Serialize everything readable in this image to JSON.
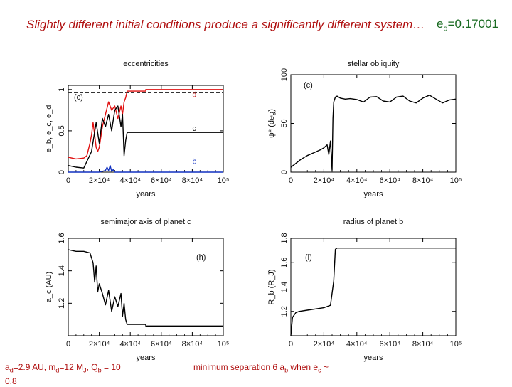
{
  "slide": {
    "title": "Slightly different initial conditions produce a significantly different system…",
    "ed_label": {
      "symbol": "e",
      "sub": "d",
      "value": "=0.17001"
    }
  },
  "footer": {
    "left": {
      "a_sym": "a",
      "a_sub": "d",
      "a_val": "=2.9 AU,  ",
      "m_sym": "m",
      "m_sub": "d",
      "m_val": "=12 M",
      "mj_sub": "J",
      "q_pre": ",  Q",
      "q_sub": "b",
      "q_val": " = 10",
      "line2": "0.8"
    },
    "right": {
      "pre": "minimum separation 6 a",
      "pre_sub": "b",
      "mid": " when e",
      "mid_sub": "c",
      "post": " ~"
    }
  },
  "chart_data": [
    {
      "type": "line",
      "panel": "eccentricities",
      "title": "eccentricities",
      "panel_label": "(c)",
      "xlabel": "years",
      "ylabel": "e_b, e_c, e_d",
      "xlim": [
        0,
        100000
      ],
      "ylim": [
        0,
        1.05
      ],
      "xticks": [
        "0",
        "2×10⁴",
        "4×10⁴",
        "6×10⁴",
        "8×10⁴",
        "10⁵"
      ],
      "yticks": [
        0,
        0.5,
        1
      ],
      "ytick_labels": [
        "0",
        "0.5",
        "1"
      ],
      "grid": false,
      "reference_line": {
        "y": 0.96,
        "style": "dashed"
      },
      "series": [
        {
          "name": "d",
          "color": "#e01010",
          "x": [
            0,
            5000,
            10000,
            12000,
            14000,
            15000,
            16000,
            17000,
            18000,
            19000,
            20000,
            22000,
            24000,
            26000,
            28000,
            30000,
            32000,
            34000,
            35000,
            36000,
            37000,
            38000,
            40000,
            50000,
            50001,
            100000
          ],
          "y": [
            0.18,
            0.16,
            0.17,
            0.2,
            0.35,
            0.45,
            0.6,
            0.45,
            0.3,
            0.25,
            0.3,
            0.55,
            0.7,
            0.85,
            0.75,
            0.8,
            0.65,
            0.8,
            0.7,
            0.85,
            0.9,
            0.98,
            0.98,
            0.98,
            1.0,
            1.0
          ]
        },
        {
          "name": "c",
          "color": "#000000",
          "x": [
            0,
            5000,
            10000,
            15000,
            18000,
            20000,
            22000,
            24000,
            26000,
            28000,
            30000,
            32000,
            34000,
            35000,
            36000,
            37000,
            38000,
            40000,
            100000
          ],
          "y": [
            0.08,
            0.06,
            0.05,
            0.25,
            0.6,
            0.35,
            0.65,
            0.55,
            0.7,
            0.5,
            0.75,
            0.8,
            0.55,
            0.7,
            0.2,
            0.38,
            0.48,
            0.48,
            0.48
          ]
        },
        {
          "name": "b",
          "color": "#1030c0",
          "x": [
            0,
            20000,
            24000,
            25000,
            26000,
            27000,
            28000,
            29000,
            30000,
            32000,
            100000
          ],
          "y": [
            0.0,
            0.0,
            0.02,
            0.06,
            0.02,
            0.08,
            0.01,
            0.03,
            0.0,
            0.0,
            0.0
          ]
        }
      ],
      "series_labels": [
        "d",
        "c",
        "b"
      ]
    },
    {
      "type": "line",
      "panel": "stellar-obliquity",
      "title": "stellar obliquity",
      "panel_label": "(c)",
      "xlabel": "years",
      "ylabel": "ψ* (deg)",
      "xlim": [
        0,
        100000
      ],
      "ylim": [
        0,
        100
      ],
      "xticks": [
        "0",
        "2×10⁴",
        "4×10⁴",
        "6×10⁴",
        "8×10⁴",
        "10⁵"
      ],
      "yticks": [
        0,
        50,
        100
      ],
      "ytick_labels": [
        "0",
        "50",
        "100"
      ],
      "grid": false,
      "series": [
        {
          "name": "",
          "color": "#000000",
          "x": [
            0,
            3000,
            6000,
            10000,
            14000,
            18000,
            20000,
            22000,
            23000,
            24000,
            25000,
            25500,
            26000,
            27000,
            28000,
            30000,
            33000,
            36000,
            40000,
            44000,
            48000,
            52000,
            56000,
            60000,
            64000,
            68000,
            72000,
            76000,
            80000,
            84000,
            88000,
            92000,
            96000,
            100000
          ],
          "y": [
            5,
            9,
            13,
            17,
            20,
            23,
            25,
            28,
            18,
            32,
            2,
            55,
            72,
            77,
            78,
            76,
            75,
            75.5,
            74.5,
            72,
            77,
            77.5,
            73,
            72,
            77,
            78,
            73,
            71,
            76,
            79,
            75,
            71,
            74,
            75
          ]
        }
      ]
    },
    {
      "type": "line",
      "panel": "semimajor-axis",
      "title": "semimajor axis of planet c",
      "panel_label": "(h)",
      "xlabel": "years",
      "ylabel": "a_c (AU)",
      "xlim": [
        0,
        100000
      ],
      "ylim": [
        1.0,
        1.6
      ],
      "xticks": [
        "0",
        "2×10⁴",
        "4×10⁴",
        "6×10⁴",
        "8×10⁴",
        "10⁵"
      ],
      "yticks": [
        1.2,
        1.4,
        1.6
      ],
      "ytick_labels": [
        "1.2",
        "1.4",
        "1.6"
      ],
      "grid": false,
      "series": [
        {
          "name": "",
          "color": "#000000",
          "x": [
            0,
            5000,
            10000,
            14000,
            16000,
            17000,
            18000,
            19000,
            20000,
            22000,
            24000,
            26000,
            28000,
            30000,
            32000,
            34000,
            35000,
            36000,
            37000,
            38000,
            40000,
            50000,
            50001,
            100000
          ],
          "y": [
            1.53,
            1.52,
            1.52,
            1.51,
            1.45,
            1.33,
            1.43,
            1.27,
            1.32,
            1.26,
            1.19,
            1.28,
            1.15,
            1.24,
            1.18,
            1.26,
            1.12,
            1.2,
            1.1,
            1.07,
            1.07,
            1.07,
            1.06,
            1.06
          ]
        }
      ]
    },
    {
      "type": "line",
      "panel": "radius-planet-b",
      "title": "radius of planet b",
      "panel_label": "(i)",
      "xlabel": "years",
      "ylabel": "R_b (R_J)",
      "xlim": [
        0,
        100000
      ],
      "ylim": [
        1.0,
        1.8
      ],
      "xticks": [
        "0",
        "2×10⁴",
        "4×10⁴",
        "6×10⁴",
        "8×10⁴",
        "10⁵"
      ],
      "yticks": [
        1.2,
        1.4,
        1.6,
        1.8
      ],
      "ytick_labels": [
        "1.2",
        "1.4",
        "1.6",
        "1.8"
      ],
      "grid": false,
      "series": [
        {
          "name": "",
          "color": "#000000",
          "x": [
            0,
            1000,
            3000,
            5000,
            10000,
            15000,
            20000,
            22000,
            24000,
            25000,
            26000,
            27000,
            28000,
            100000
          ],
          "y": [
            1.0,
            1.15,
            1.19,
            1.2,
            1.21,
            1.22,
            1.23,
            1.24,
            1.25,
            1.35,
            1.45,
            1.71,
            1.72,
            1.72
          ]
        }
      ]
    }
  ]
}
